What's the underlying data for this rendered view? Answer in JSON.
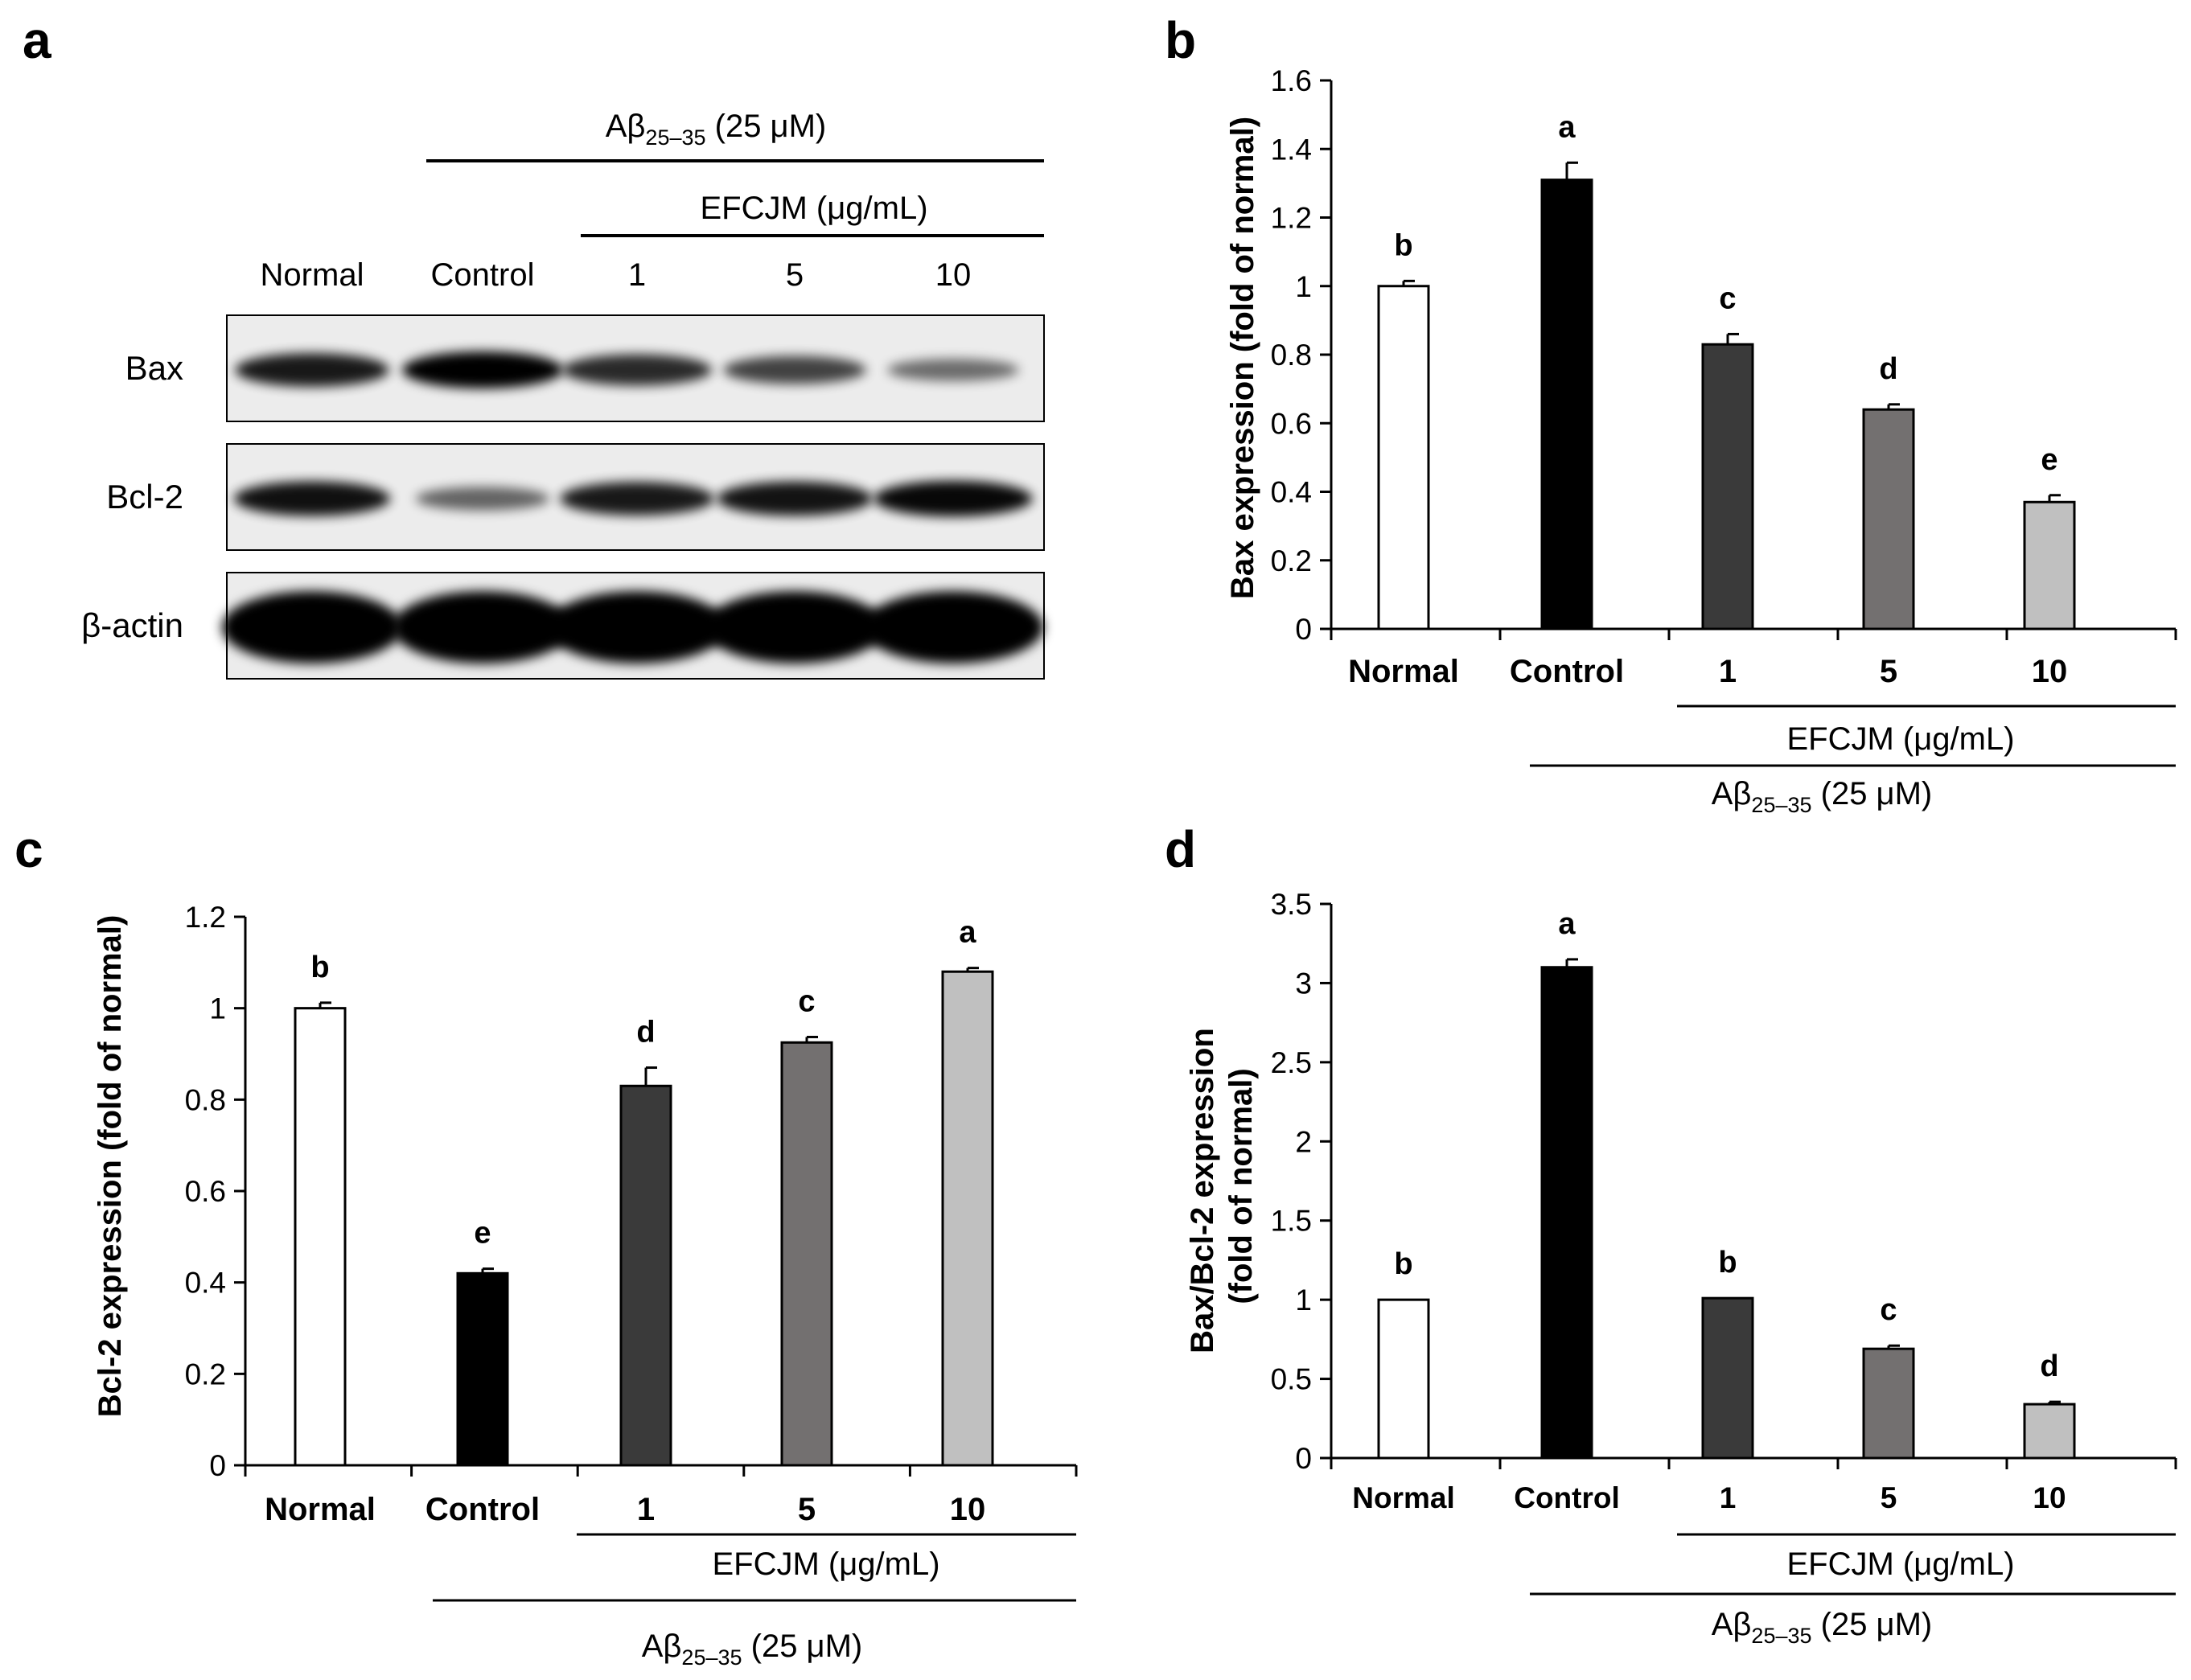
{
  "panel_letters": [
    "a",
    "b",
    "c",
    "d"
  ],
  "colors": [
    "#ffffff",
    "#000000",
    "#3a3a3a",
    "#737070",
    "#c0c0c0"
  ],
  "western_blot": {
    "treatment_label": {
      "main": "Aβ",
      "sub": "25–35",
      "rest": " (25 μM)"
    },
    "dose_label": "EFCJM (μg/mL)",
    "lanes": [
      "Normal",
      "Control",
      "1",
      "5",
      "10"
    ],
    "bands": [
      {
        "name": "Bax",
        "intensity": [
          0.85,
          1.0,
          0.75,
          0.6,
          0.35
        ]
      },
      {
        "name": "Bcl-2",
        "intensity": [
          0.9,
          0.4,
          0.85,
          0.88,
          0.95
        ]
      },
      {
        "name": "β-actin",
        "intensity": [
          1.0,
          1.0,
          1.0,
          1.0,
          1.0
        ]
      }
    ]
  },
  "chart_data": [
    {
      "panel": "b",
      "type": "bar",
      "categories": [
        "Normal",
        "Control",
        "1",
        "5",
        "10"
      ],
      "values": [
        1.0,
        1.31,
        0.83,
        0.64,
        0.37
      ],
      "errors": [
        0.015,
        0.05,
        0.03,
        0.015,
        0.02
      ],
      "letters": [
        "b",
        "a",
        "c",
        "d",
        "e"
      ],
      "ylabel": "Bax expression (fold of normal)",
      "ylim": [
        0,
        1.6
      ],
      "yticks": [
        "0",
        "0.2",
        "0.4",
        "0.6",
        "0.8",
        "1",
        "1.2",
        "1.4",
        "1.6"
      ],
      "group_label": "EFCJM (μg/mL)",
      "treatment_label": {
        "main": "Aβ",
        "sub": "25–35",
        "rest": " (25 μM)"
      }
    },
    {
      "panel": "c",
      "type": "bar",
      "categories": [
        "Normal",
        "Control",
        "1",
        "5",
        "10"
      ],
      "values": [
        1.0,
        0.42,
        0.83,
        0.925,
        1.08
      ],
      "errors": [
        0.012,
        0.01,
        0.04,
        0.012,
        0.008
      ],
      "letters": [
        "b",
        "e",
        "d",
        "c",
        "a"
      ],
      "ylabel": "Bcl-2 expression (fold of normal)",
      "ylim": [
        0,
        1.2
      ],
      "yticks": [
        "0",
        "0.2",
        "0.4",
        "0.6",
        "0.8",
        "1",
        "1.2"
      ],
      "group_label": "EFCJM (μg/mL)",
      "treatment_label": {
        "main": "Aβ",
        "sub": "25–35",
        "rest": " (25 μM)"
      }
    },
    {
      "panel": "d",
      "type": "bar",
      "categories": [
        "Normal",
        "Control",
        "1",
        "5",
        "10"
      ],
      "values": [
        1.0,
        3.1,
        1.01,
        0.69,
        0.34
      ],
      "errors": [
        0.0,
        0.05,
        0.0,
        0.02,
        0.015
      ],
      "letters": [
        "b",
        "a",
        "b",
        "c",
        "d"
      ],
      "ylabel": [
        "Bax/Bcl-2 expression",
        "(fold of normal)"
      ],
      "ylim": [
        0,
        3.5
      ],
      "yticks": [
        "0",
        "0.5",
        "1",
        "1.5",
        "2",
        "2.5",
        "3",
        "3.5"
      ],
      "group_label": "EFCJM (μg/mL)",
      "treatment_label": {
        "main": "Aβ",
        "sub": "25–35",
        "rest": " (25 μM)"
      }
    }
  ]
}
